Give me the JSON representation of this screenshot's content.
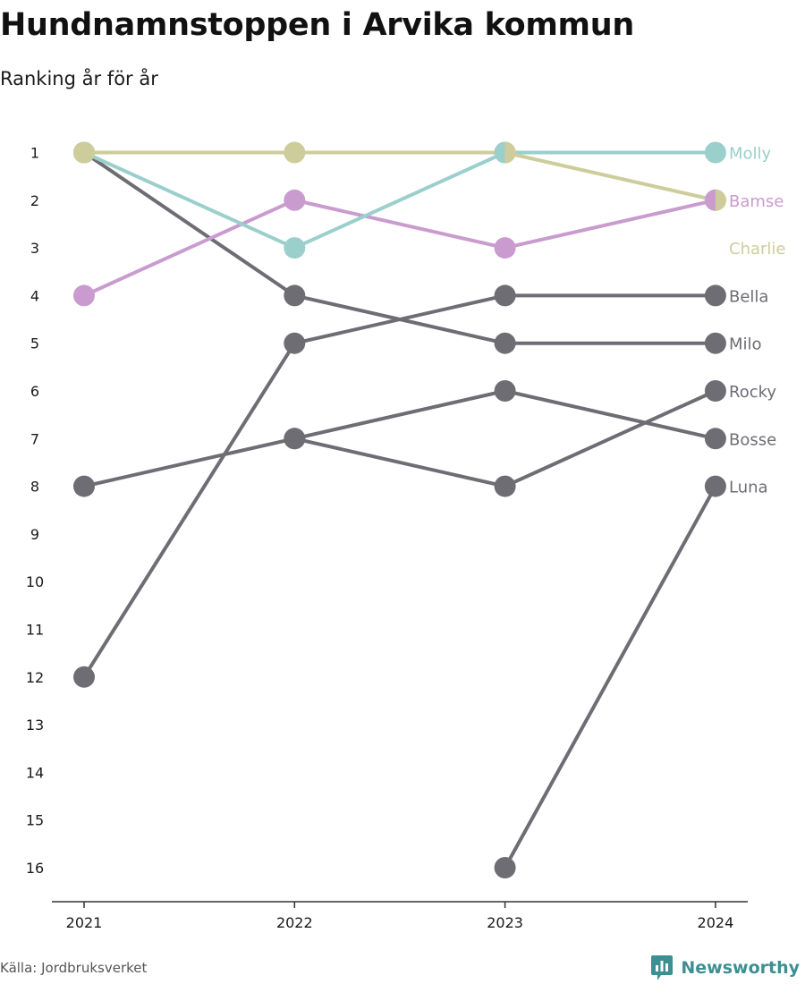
{
  "title": "Hundnamnstoppen i Arvika kommun",
  "subtitle": "Ranking år för år",
  "source": "Källa: Jordbruksverket",
  "brand": "Newsworthy",
  "colors": {
    "gray": "#6e6d74",
    "teal": "#9acfcc",
    "pink": "#c99bcf",
    "olive": "#cdcd9b",
    "brand": "#3d8f91"
  },
  "chart_data": {
    "type": "line",
    "title": "Hundnamnstoppen i Arvika kommun",
    "subtitle": "Ranking år för år",
    "x": [
      "2021",
      "2022",
      "2023",
      "2024"
    ],
    "y_ticks": [
      1,
      2,
      3,
      4,
      5,
      6,
      7,
      8,
      9,
      10,
      11,
      12,
      13,
      14,
      15,
      16
    ],
    "ylim": [
      16,
      1
    ],
    "y_inverted": true,
    "grid": false,
    "series": [
      {
        "name": "Luna",
        "color": "#6e6d74",
        "values": [
          null,
          null,
          16,
          8
        ]
      },
      {
        "name": "Bosse",
        "color": "#6e6d74",
        "values": [
          8,
          7,
          6,
          7
        ]
      },
      {
        "name": "Rocky",
        "color": "#6e6d74",
        "values": [
          null,
          7,
          8,
          6
        ]
      },
      {
        "name": "Bella",
        "color": "#6e6d74",
        "values": [
          12,
          5,
          4,
          4
        ]
      },
      {
        "name": "Milo",
        "color": "#6e6d74",
        "values": [
          1,
          4,
          5,
          5
        ]
      },
      {
        "name": "Bamse",
        "color": "#c99bcf",
        "values": [
          4,
          2,
          3,
          2
        ]
      },
      {
        "name": "Molly",
        "color": "#9acfcc",
        "values": [
          1,
          3,
          1,
          1
        ]
      },
      {
        "name": "Charlie",
        "color": "#cdcd9b",
        "values": [
          1,
          1,
          1,
          2
        ]
      }
    ],
    "end_labels": [
      {
        "name": "Molly",
        "rank": 1,
        "color": "#9acfcc"
      },
      {
        "name": "Bamse",
        "rank": 2,
        "color": "#c99bcf"
      },
      {
        "name": "Charlie",
        "rank": 3,
        "color": "#cdcd9b"
      },
      {
        "name": "Bella",
        "rank": 4,
        "color": "#6e6d74"
      },
      {
        "name": "Milo",
        "rank": 5,
        "color": "#6e6d74"
      },
      {
        "name": "Rocky",
        "rank": 6,
        "color": "#6e6d74"
      },
      {
        "name": "Bosse",
        "rank": 7,
        "color": "#6e6d74"
      },
      {
        "name": "Luna",
        "rank": 8,
        "color": "#6e6d74"
      }
    ]
  }
}
